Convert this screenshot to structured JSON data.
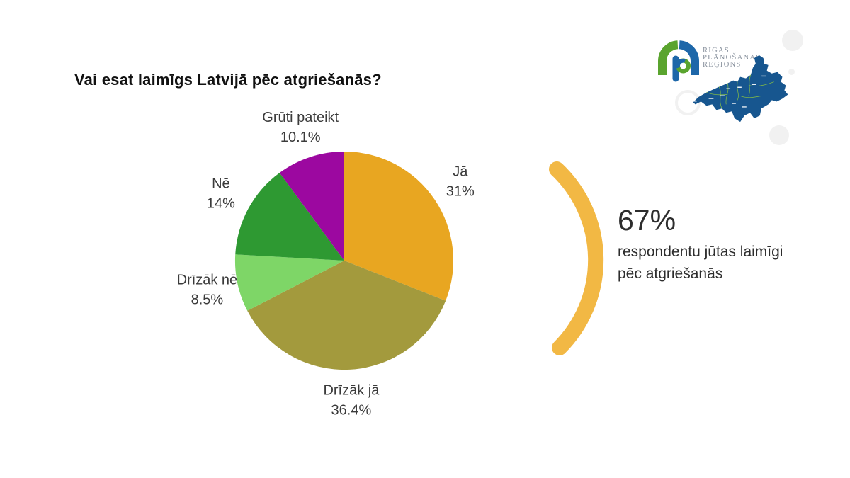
{
  "title": "Vai esat laimīgs Latvijā pēc atgriešanās?",
  "chart_data": {
    "type": "pie",
    "title": "Vai esat laimīgs Latvijā pēc atgriešanās?",
    "units": "%",
    "categories": [
      "Jā",
      "Drīzāk jā",
      "Drīzāk nē",
      "Nē",
      "Grūti pateikt"
    ],
    "values": [
      31,
      36.4,
      8.5,
      14,
      10.1
    ],
    "value_labels": [
      "31%",
      "36.4%",
      "8.5%",
      "14%",
      "10.1%"
    ],
    "colors": [
      "#E8A621",
      "#A39A3D",
      "#7ED667",
      "#2E9932",
      "#9C08A0"
    ],
    "start_angle_deg": 0,
    "direction": "clockwise",
    "label_position": "outside",
    "legend": "none"
  },
  "callout": {
    "value": "67%",
    "lines": [
      "respondentu jūtas laimīgi",
      "pēc atgriešanās"
    ]
  },
  "logo": {
    "name_lines": [
      "Rīgas",
      "plānošanas",
      "reģions"
    ]
  },
  "colors": {
    "page_background": "#FFFFFF",
    "title_text": "#111111",
    "label_text": "#3B3B3B",
    "callout_text": "#2D2D2D",
    "accent_arc": "#F2B844",
    "logo_green": "#5AA42E",
    "logo_blue": "#1D67A9",
    "logo_text": "#87909C",
    "map_fill": "#17568F",
    "map_border": "#8DC63F",
    "watermark": "#F1F1F1"
  }
}
